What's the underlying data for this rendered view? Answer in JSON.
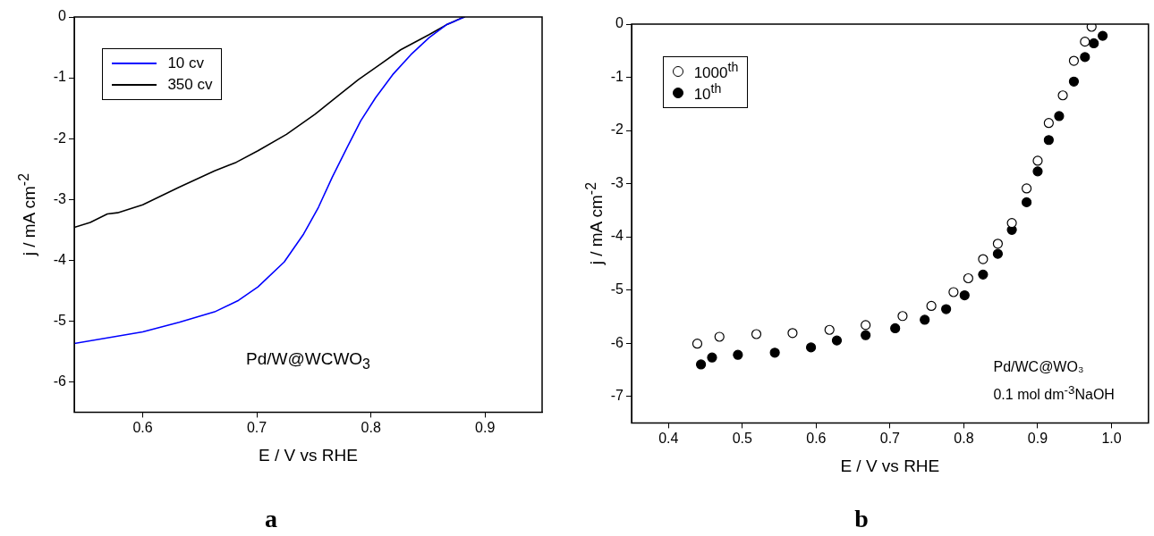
{
  "chart_data": [
    {
      "type": "line",
      "title": "a",
      "xlabel": "E / V vs RHE",
      "ylabel": "j / mA cm$^{-2}$",
      "xlim": [
        0.54,
        0.95
      ],
      "xticks": [
        0.6,
        0.7,
        0.8,
        0.9
      ],
      "ylim": [
        -6.5,
        0
      ],
      "yticks": [
        0,
        -1,
        -2,
        -3,
        -4,
        -5,
        -6
      ],
      "grid": false,
      "legend": "top left",
      "marker": "none",
      "line_style": "solid",
      "annotations": [
        "Pd/W@WCWO$_{3}$"
      ],
      "series": [
        {
          "name": "10 cv",
          "color": "#0000ff",
          "x": [
            0.54,
            0.6,
            0.632,
            0.663,
            0.684,
            0.701,
            0.724,
            0.741,
            0.754,
            0.766,
            0.779,
            0.791,
            0.804,
            0.819,
            0.835,
            0.851,
            0.866,
            0.882
          ],
          "values": [
            -5.37,
            -5.18,
            -5.02,
            -4.85,
            -4.66,
            -4.44,
            -4.03,
            -3.57,
            -3.13,
            -2.64,
            -2.15,
            -1.71,
            -1.33,
            -0.95,
            -0.62,
            -0.34,
            -0.13,
            0
          ]
        },
        {
          "name": "350 cv",
          "color": "#000000",
          "x": [
            0.54,
            0.554,
            0.569,
            0.578,
            0.6,
            0.632,
            0.663,
            0.682,
            0.701,
            0.726,
            0.751,
            0.773,
            0.789,
            0.808,
            0.826,
            0.851,
            0.866,
            0.879,
            0.882
          ],
          "values": [
            -3.46,
            -3.38,
            -3.24,
            -3.22,
            -3.09,
            -2.8,
            -2.53,
            -2.39,
            -2.2,
            -1.93,
            -1.6,
            -1.27,
            -1.03,
            -0.78,
            -0.54,
            -0.29,
            -0.13,
            -0.02,
            0
          ]
        }
      ]
    },
    {
      "type": "scatter",
      "title": "b",
      "xlabel": "E / V vs RHE",
      "ylabel": "j / mA cm$^{-2}$",
      "xlim": [
        0.35,
        1.05
      ],
      "xticks": [
        0.4,
        0.5,
        0.6,
        0.7,
        0.8,
        0.9,
        {
          "value": 1.0,
          "label": "1.0"
        }
      ],
      "ylim": [
        -7.5,
        0
      ],
      "yticks": [
        0,
        -1,
        -2,
        -3,
        -4,
        -5,
        -6,
        -7
      ],
      "grid": false,
      "legend": "top left",
      "annotations": [
        "Pd/WC@WO₃",
        "0.1 mol dm$^{-3}$NaOH"
      ],
      "series": [
        {
          "name": "1000$^{th}$",
          "color": "#000000",
          "marker": "open-circle",
          "x": [
            0.439,
            0.469,
            0.519,
            0.568,
            0.618,
            0.667,
            0.717,
            0.756,
            0.786,
            0.806,
            0.826,
            0.846,
            0.865,
            0.885,
            0.9,
            0.915,
            0.934,
            0.949,
            0.964,
            0.973
          ],
          "values": [
            -6.01,
            -5.88,
            -5.83,
            -5.81,
            -5.75,
            -5.66,
            -5.49,
            -5.3,
            -5.04,
            -4.78,
            -4.42,
            -4.13,
            -3.74,
            -3.09,
            -2.57,
            -1.86,
            -1.34,
            -0.69,
            -0.33,
            -0.05
          ]
        },
        {
          "name": "10$^{th}$",
          "color": "#000000",
          "marker": "circle",
          "x": [
            0.444,
            0.459,
            0.494,
            0.544,
            0.593,
            0.628,
            0.667,
            0.707,
            0.747,
            0.776,
            0.801,
            0.826,
            0.846,
            0.865,
            0.885,
            0.9,
            0.915,
            0.929,
            0.949,
            0.964,
            0.976,
            0.988
          ],
          "values": [
            -6.4,
            -6.27,
            -6.22,
            -6.18,
            -6.08,
            -5.95,
            -5.85,
            -5.72,
            -5.56,
            -5.36,
            -5.1,
            -4.71,
            -4.32,
            -3.87,
            -3.35,
            -2.77,
            -2.18,
            -1.73,
            -1.08,
            -0.62,
            -0.36,
            -0.22
          ]
        }
      ]
    }
  ]
}
